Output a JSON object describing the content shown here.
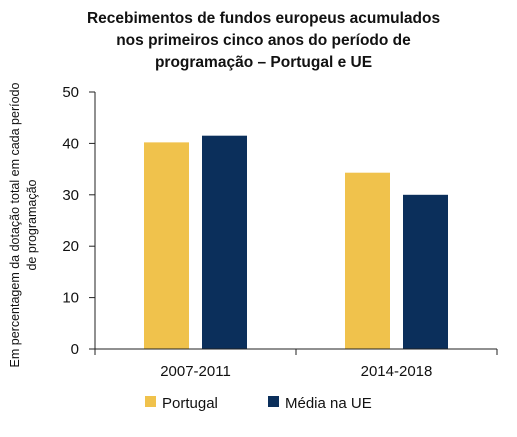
{
  "chart_data": {
    "type": "bar",
    "title_lines": [
      "Recebimentos de fundos europeus acumulados",
      "nos primeiros cinco anos do período de",
      "programação – Portugal e UE"
    ],
    "ylabel_lines": [
      "Em percentagem  da dotação total em cada período",
      "de programação"
    ],
    "xlabel": "",
    "categories": [
      "2007-2011",
      "2014-2018"
    ],
    "series": [
      {
        "name": "Portugal",
        "color": "#f0c24c",
        "values": [
          40.2,
          34.3
        ]
      },
      {
        "name": "Média na UE",
        "color": "#0b2f5b",
        "values": [
          41.5,
          30.0
        ]
      }
    ],
    "ylim": [
      0,
      50
    ],
    "yticks": [
      0,
      10,
      20,
      30,
      40,
      50
    ],
    "grid": false,
    "legend_position": "bottom"
  }
}
